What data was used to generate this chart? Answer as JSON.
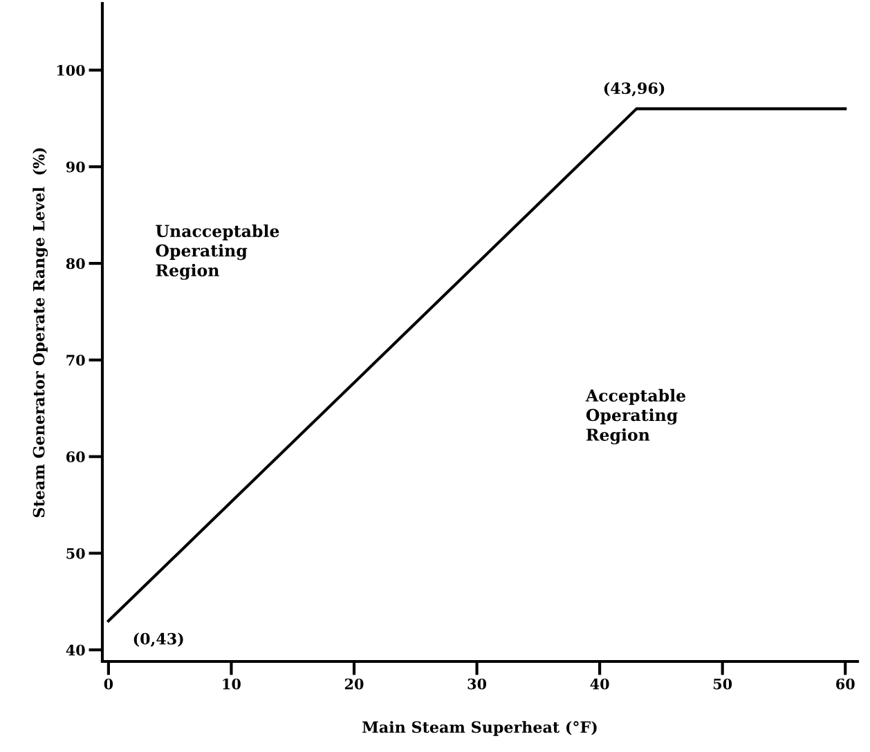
{
  "chart_data": {
    "type": "line",
    "xlabel": "Main Steam Superheat (°F)",
    "ylabel": "Steam Generator Operate Range Level  (%)",
    "x": [
      0,
      43,
      60
    ],
    "series": [
      {
        "color": "#000000",
        "values": [
          43,
          96,
          96
        ]
      }
    ],
    "xlim": [
      -0.5,
      61
    ],
    "ylim": [
      38.8,
      106.9
    ],
    "xticks": [
      0,
      10,
      20,
      30,
      40,
      50,
      60
    ],
    "yticks": [
      40,
      50,
      60,
      70,
      80,
      90,
      100
    ],
    "grid": false,
    "legend": false,
    "marker": "none",
    "line_style": "solid",
    "annotations": [
      {
        "text": "(43,96)",
        "x": 43,
        "y": 96
      },
      {
        "text": "(0,43)",
        "x": 0,
        "y": 43
      },
      "Unacceptable\nOperating\nRegion",
      "Acceptable\nOperating\nRegion"
    ]
  }
}
